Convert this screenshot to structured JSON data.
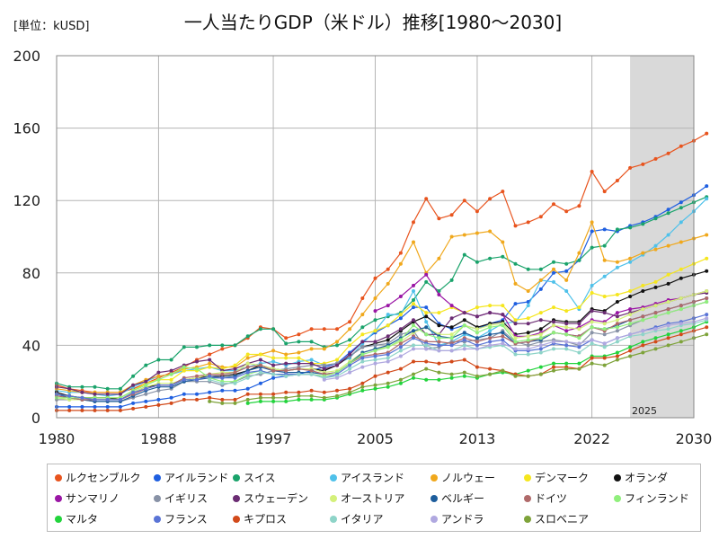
{
  "chart_data": {
    "type": "line",
    "title": "一人当たりGDP（米ドル）推移[1980～2030]",
    "unit_label": "[単位：kUSD]",
    "forecast_label": "2025",
    "x_start": 1980,
    "x_end": 2030,
    "forecast_start": 2025,
    "x_ticks": [
      1980,
      1988,
      1997,
      2005,
      2013,
      2022,
      2030
    ],
    "y_ticks": [
      0,
      40,
      80,
      120,
      160,
      200
    ],
    "ylim": [
      0,
      200
    ],
    "grid": true,
    "series": [
      {
        "name": "ルクセンブルク",
        "color": "#e8541e",
        "values": [
          18,
          16,
          15,
          14,
          14,
          14,
          16,
          19,
          22,
          25,
          28,
          32,
          35,
          38,
          40,
          44,
          50,
          49,
          44,
          46,
          49,
          49,
          49,
          53,
          66,
          77,
          82,
          91,
          108,
          121,
          110,
          112,
          120,
          114,
          121,
          125,
          106,
          108,
          111,
          118,
          114,
          117,
          136,
          125,
          131,
          138,
          140,
          143,
          146,
          150,
          153,
          157
        ]
      },
      {
        "name": "アイルランド",
        "color": "#1f5fe0",
        "values": [
          6,
          6,
          6,
          6,
          6,
          6,
          8,
          9,
          10,
          11,
          13,
          13,
          14,
          15,
          15,
          16,
          19,
          22,
          23,
          24,
          26,
          28,
          30,
          36,
          42,
          47,
          51,
          55,
          61,
          61,
          52,
          49,
          51,
          49,
          52,
          54,
          63,
          64,
          71,
          80,
          81,
          87,
          103,
          104,
          103,
          106,
          108,
          111,
          115,
          119,
          123,
          128
        ]
      },
      {
        "name": "スイス",
        "color": "#1aa36b",
        "values": [
          19,
          17,
          17,
          17,
          16,
          16,
          23,
          29,
          32,
          32,
          39,
          39,
          40,
          40,
          40,
          45,
          49,
          49,
          41,
          42,
          42,
          39,
          40,
          43,
          50,
          54,
          56,
          58,
          65,
          75,
          70,
          76,
          90,
          86,
          88,
          89,
          85,
          82,
          82,
          86,
          85,
          87,
          94,
          95,
          104,
          105,
          107,
          110,
          113,
          116,
          119,
          122
        ]
      },
      {
        "name": "アイスランド",
        "color": "#4fc1ea",
        "values": [
          15,
          14,
          14,
          13,
          12,
          13,
          17,
          20,
          23,
          24,
          26,
          27,
          28,
          26,
          26,
          28,
          30,
          31,
          29,
          31,
          32,
          29,
          30,
          33,
          41,
          48,
          57,
          57,
          70,
          53,
          40,
          42,
          46,
          44,
          48,
          52,
          53,
          62,
          76,
          75,
          70,
          60,
          73,
          78,
          83,
          86,
          90,
          95,
          101,
          108,
          114,
          121
        ]
      },
      {
        "name": "ノルウェー",
        "color": "#f0a81c",
        "values": [
          16,
          15,
          14,
          14,
          14,
          14,
          18,
          21,
          23,
          24,
          27,
          28,
          30,
          28,
          28,
          33,
          35,
          37,
          35,
          36,
          38,
          38,
          42,
          49,
          57,
          66,
          74,
          85,
          97,
          80,
          88,
          100,
          101,
          102,
          103,
          97,
          74,
          70,
          76,
          82,
          76,
          91,
          108,
          87,
          86,
          88,
          91,
          93,
          95,
          97,
          99,
          101
        ]
      },
      {
        "name": "デンマーク",
        "color": "#f5e61e",
        "values": [
          13,
          12,
          11,
          11,
          11,
          11,
          15,
          19,
          21,
          21,
          26,
          26,
          28,
          27,
          29,
          35,
          35,
          33,
          33,
          33,
          30,
          30,
          32,
          40,
          46,
          48,
          51,
          57,
          63,
          58,
          58,
          61,
          58,
          61,
          62,
          62,
          54,
          55,
          58,
          61,
          59,
          61,
          69,
          67,
          68,
          70,
          73,
          75,
          79,
          82,
          85,
          88
        ]
      },
      {
        "name": "オランダ",
        "color": "#111111",
        "values": [
          14,
          12,
          11,
          11,
          11,
          10,
          14,
          17,
          18,
          18,
          21,
          22,
          23,
          23,
          24,
          26,
          29,
          27,
          26,
          27,
          27,
          26,
          29,
          34,
          39,
          41,
          43,
          48,
          53,
          56,
          51,
          50,
          54,
          50,
          52,
          53,
          46,
          47,
          49,
          54,
          53,
          53,
          60,
          59,
          64,
          67,
          70,
          72,
          74,
          77,
          79,
          81
        ]
      },
      {
        "name": "サンマリノ",
        "color": "#9a16a5",
        "values": [
          null,
          null,
          null,
          null,
          null,
          null,
          null,
          null,
          null,
          null,
          null,
          null,
          null,
          null,
          null,
          null,
          null,
          null,
          null,
          null,
          null,
          null,
          null,
          null,
          null,
          59,
          62,
          67,
          73,
          79,
          68,
          62,
          58,
          56,
          58,
          57,
          45,
          45,
          47,
          51,
          48,
          50,
          54,
          53,
          58,
          60,
          61,
          63,
          65,
          66,
          68,
          70
        ]
      },
      {
        "name": "イギリス",
        "color": "#8892a6",
        "values": [
          10,
          10,
          10,
          9,
          9,
          9,
          11,
          13,
          15,
          16,
          20,
          20,
          20,
          18,
          20,
          23,
          24,
          26,
          27,
          28,
          29,
          29,
          30,
          34,
          39,
          40,
          41,
          46,
          48,
          38,
          39,
          42,
          42,
          43,
          44,
          48,
          42,
          40,
          42,
          43,
          42,
          40,
          47,
          46,
          48,
          51,
          54,
          56,
          58,
          60,
          62,
          64
        ]
      },
      {
        "name": "スウェーデン",
        "color": "#6b2c73",
        "values": [
          17,
          16,
          14,
          13,
          13,
          13,
          18,
          20,
          25,
          26,
          29,
          31,
          32,
          26,
          27,
          30,
          32,
          29,
          30,
          30,
          30,
          27,
          29,
          35,
          42,
          42,
          45,
          49,
          54,
          46,
          46,
          55,
          58,
          56,
          58,
          57,
          52,
          52,
          54,
          53,
          52,
          52,
          59,
          58,
          56,
          58,
          60,
          62,
          64,
          66,
          68,
          69
        ]
      },
      {
        "name": "オーストリア",
        "color": "#d4f07a",
        "values": [
          11,
          10,
          10,
          10,
          10,
          10,
          14,
          17,
          19,
          19,
          21,
          22,
          24,
          25,
          25,
          30,
          29,
          27,
          26,
          27,
          27,
          25,
          26,
          31,
          36,
          38,
          39,
          42,
          47,
          50,
          46,
          46,
          51,
          49,
          51,
          52,
          44,
          45,
          46,
          51,
          50,
          49,
          53,
          52,
          54,
          57,
          60,
          62,
          64,
          66,
          68,
          70
        ]
      },
      {
        "name": "ベルギー",
        "color": "#1d5d9c",
        "values": [
          13,
          11,
          10,
          9,
          9,
          9,
          12,
          15,
          17,
          17,
          20,
          21,
          22,
          22,
          23,
          26,
          28,
          26,
          25,
          25,
          25,
          24,
          25,
          30,
          36,
          38,
          40,
          44,
          48,
          50,
          45,
          44,
          47,
          44,
          46,
          47,
          41,
          42,
          43,
          47,
          46,
          45,
          50,
          49,
          51,
          54,
          56,
          58,
          60,
          62,
          64,
          66
        ]
      },
      {
        "name": "ドイツ",
        "color": "#b06a6a",
        "values": [
          12,
          11,
          10,
          10,
          10,
          10,
          13,
          16,
          18,
          18,
          22,
          23,
          24,
          24,
          25,
          28,
          29,
          26,
          26,
          27,
          26,
          24,
          25,
          30,
          34,
          35,
          36,
          41,
          45,
          42,
          42,
          41,
          44,
          42,
          44,
          45,
          41,
          42,
          44,
          47,
          46,
          45,
          50,
          48,
          52,
          54,
          56,
          58,
          60,
          62,
          64,
          66
        ]
      },
      {
        "name": "フィンランド",
        "color": "#90ef7c",
        "values": [
          11,
          11,
          11,
          11,
          11,
          11,
          15,
          18,
          21,
          24,
          28,
          27,
          22,
          20,
          20,
          24,
          26,
          24,
          24,
          24,
          24,
          23,
          25,
          30,
          35,
          37,
          39,
          43,
          51,
          46,
          44,
          44,
          51,
          47,
          50,
          51,
          42,
          43,
          44,
          47,
          46,
          44,
          50,
          49,
          50,
          52,
          54,
          56,
          58,
          60,
          62,
          64
        ]
      },
      {
        "name": "マルタ",
        "color": "#22d43c",
        "values": [
          null,
          null,
          null,
          null,
          null,
          null,
          null,
          null,
          null,
          null,
          null,
          null,
          null,
          null,
          null,
          8,
          9,
          9,
          9,
          10,
          10,
          10,
          11,
          13,
          15,
          16,
          17,
          19,
          22,
          21,
          21,
          22,
          23,
          22,
          24,
          25,
          24,
          26,
          28,
          30,
          30,
          30,
          34,
          34,
          36,
          39,
          42,
          44,
          46,
          48,
          50,
          53
        ]
      },
      {
        "name": "フランス",
        "color": "#5a74d6",
        "values": [
          13,
          12,
          11,
          10,
          10,
          10,
          14,
          16,
          18,
          18,
          21,
          21,
          23,
          22,
          22,
          25,
          26,
          24,
          24,
          24,
          24,
          22,
          24,
          29,
          33,
          34,
          35,
          39,
          44,
          41,
          40,
          40,
          43,
          40,
          42,
          43,
          37,
          37,
          38,
          41,
          40,
          39,
          43,
          41,
          44,
          46,
          48,
          50,
          52,
          53,
          55,
          57
        ]
      },
      {
        "name": "キプロス",
        "color": "#d24a1a",
        "values": [
          4,
          4,
          4,
          4,
          4,
          4,
          5,
          6,
          7,
          8,
          10,
          10,
          11,
          10,
          10,
          13,
          13,
          13,
          14,
          14,
          15,
          14,
          15,
          16,
          19,
          23,
          25,
          27,
          31,
          31,
          30,
          31,
          32,
          28,
          27,
          26,
          24,
          23,
          24,
          28,
          28,
          27,
          33,
          33,
          34,
          37,
          40,
          42,
          44,
          46,
          48,
          50
        ]
      },
      {
        "name": "イタリア",
        "color": "#8ed4c8",
        "values": [
          null,
          null,
          null,
          null,
          null,
          null,
          null,
          null,
          null,
          null,
          null,
          null,
          21,
          19,
          19,
          22,
          25,
          24,
          23,
          24,
          24,
          22,
          23,
          27,
          31,
          32,
          33,
          37,
          40,
          40,
          37,
          37,
          40,
          38,
          39,
          40,
          35,
          35,
          36,
          38,
          38,
          36,
          41,
          39,
          42,
          45,
          46,
          48,
          49,
          51,
          52,
          54
        ]
      },
      {
        "name": "アンドラ",
        "color": "#b0a8e0",
        "values": [
          null,
          null,
          null,
          null,
          null,
          null,
          null,
          null,
          null,
          null,
          null,
          null,
          null,
          null,
          null,
          null,
          null,
          null,
          null,
          null,
          null,
          21,
          22,
          25,
          28,
          30,
          31,
          34,
          38,
          38,
          37,
          37,
          38,
          38,
          40,
          41,
          38,
          38,
          40,
          42,
          42,
          41,
          43,
          41,
          44,
          46,
          48,
          49,
          51,
          52,
          53,
          55
        ]
      },
      {
        "name": "スロベニア",
        "color": "#7ea33a",
        "values": [
          null,
          null,
          null,
          null,
          null,
          null,
          null,
          null,
          null,
          null,
          null,
          null,
          9,
          8,
          8,
          10,
          11,
          11,
          11,
          12,
          12,
          11,
          12,
          14,
          17,
          18,
          19,
          21,
          24,
          27,
          25,
          24,
          25,
          23,
          24,
          26,
          23,
          23,
          24,
          26,
          27,
          27,
          30,
          29,
          32,
          34,
          36,
          38,
          40,
          42,
          44,
          46
        ]
      }
    ]
  }
}
